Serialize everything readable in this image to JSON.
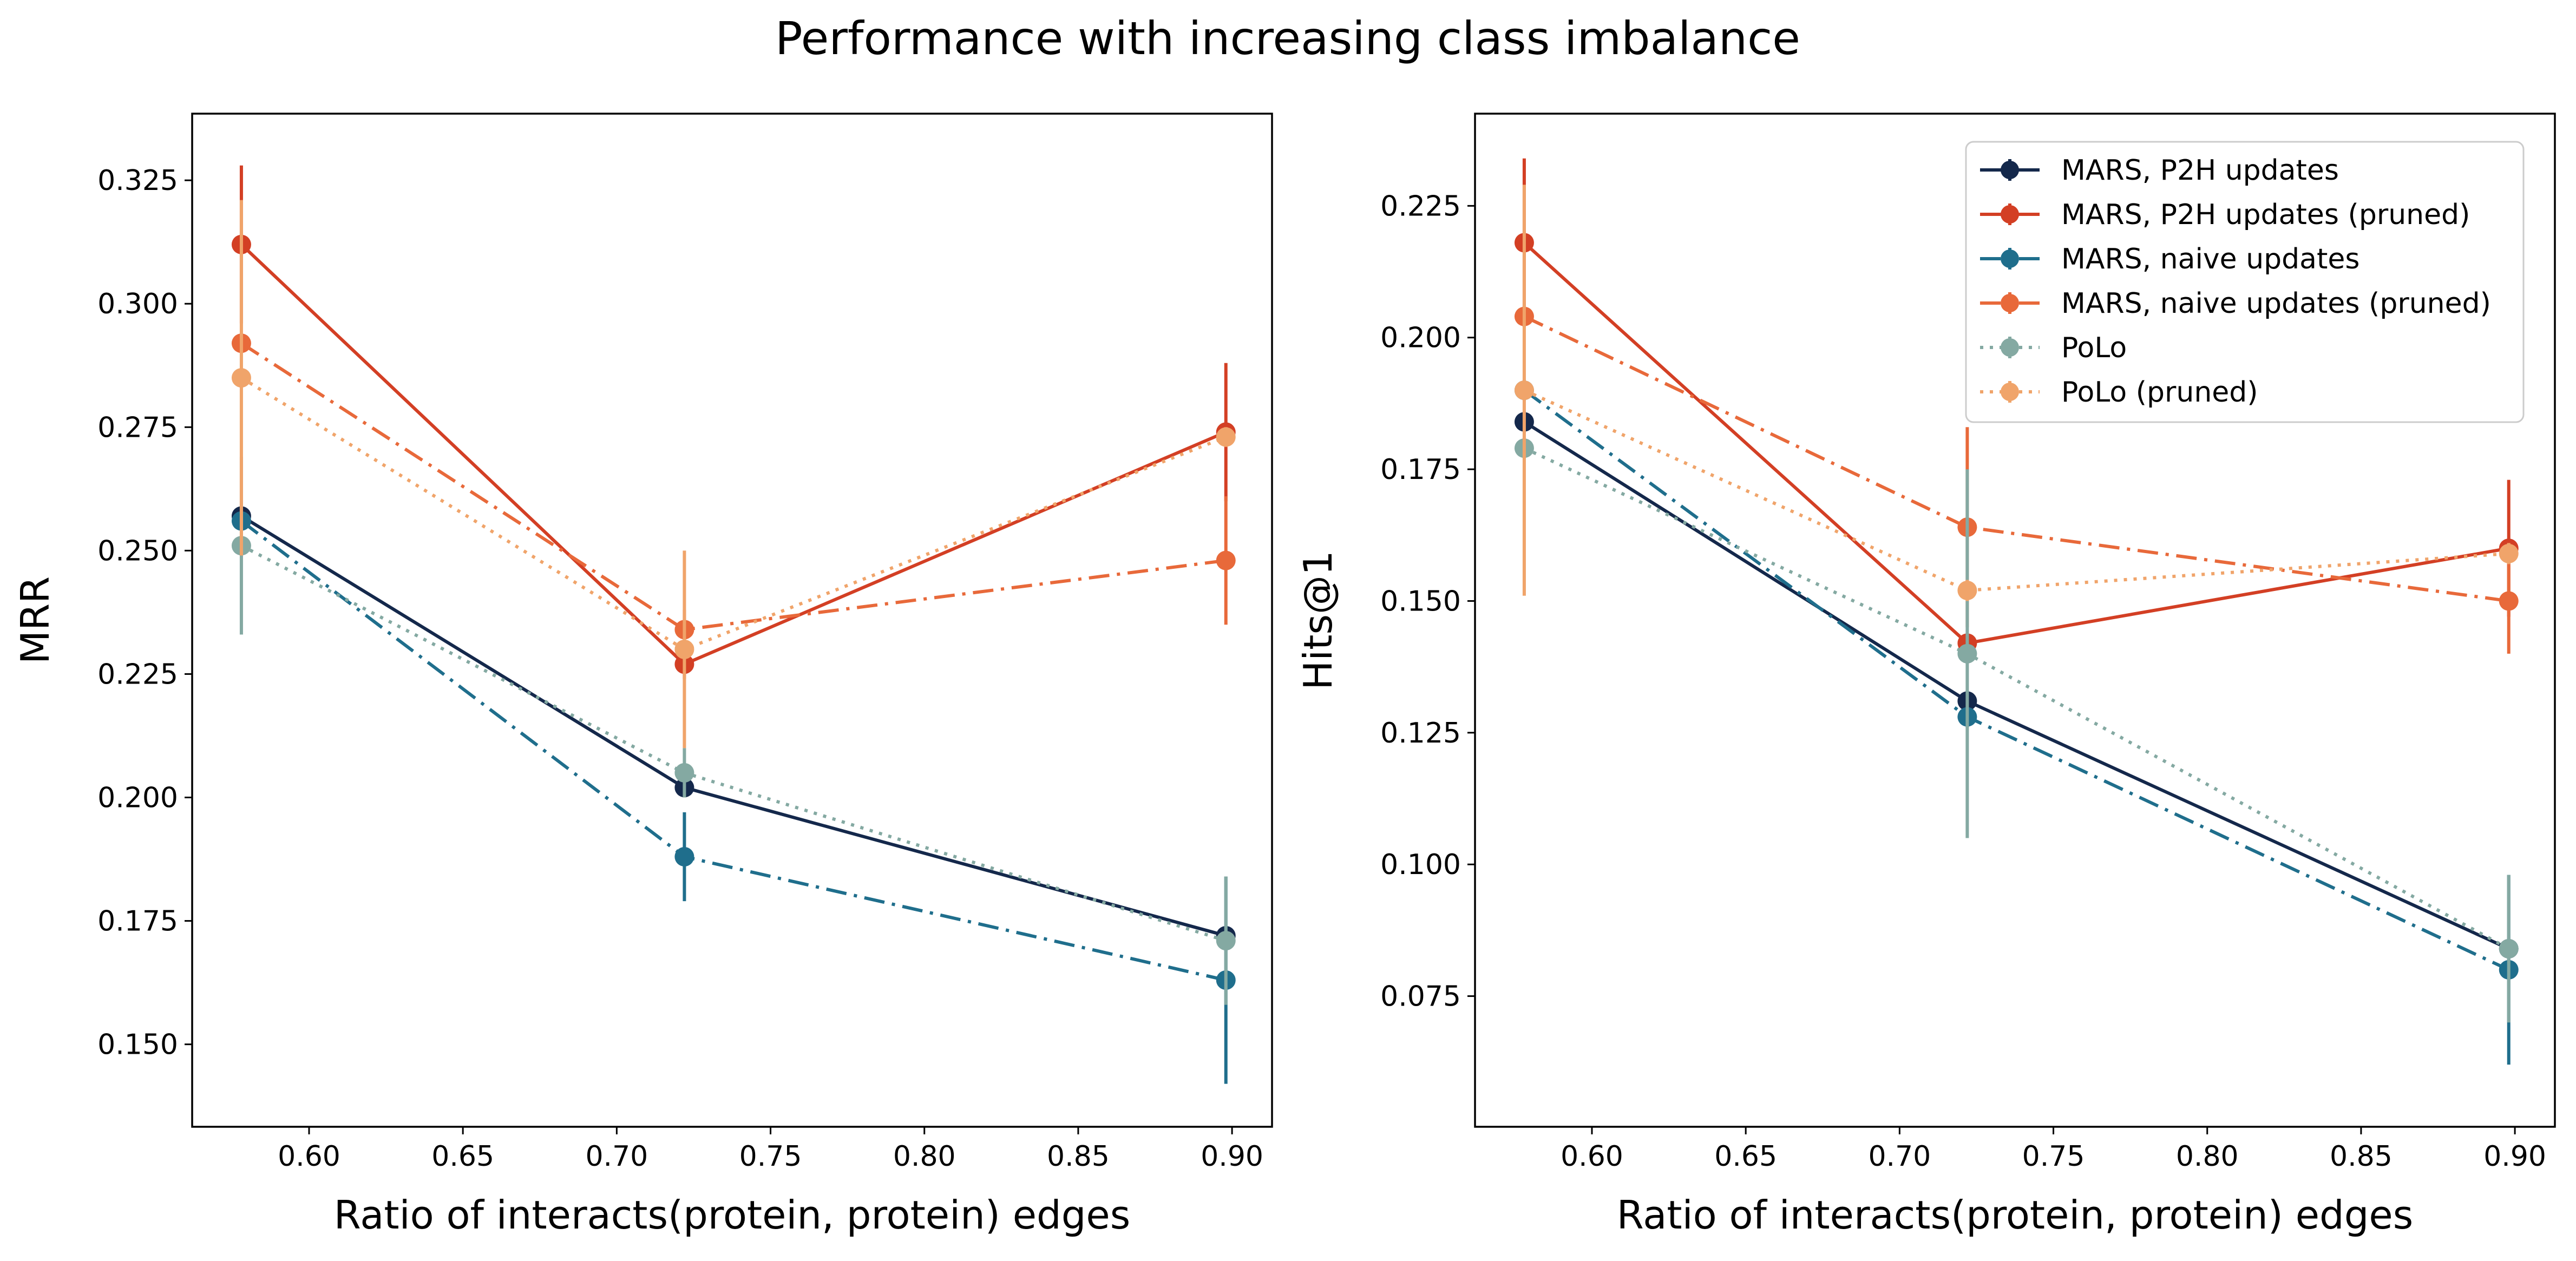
{
  "suptitle": "Performance with increasing class imbalance",
  "chart_data": [
    {
      "type": "line",
      "xlabel": "Ratio of interacts(protein, protein) edges",
      "ylabel": "MRR",
      "xlim": [
        0.562,
        0.913
      ],
      "ylim": [
        0.1333,
        0.3385
      ],
      "xticks": [
        "0.60",
        "0.65",
        "0.70",
        "0.75",
        "0.80",
        "0.85",
        "0.90"
      ],
      "yticks": [
        "0.150",
        "0.175",
        "0.200",
        "0.225",
        "0.250",
        "0.275",
        "0.300",
        "0.325"
      ],
      "x": [
        0.578,
        0.722,
        0.898
      ],
      "legend": "none",
      "grid": false,
      "series": [
        {
          "name": "MARS, P2H updates",
          "color": "#14284b",
          "dash": "solid",
          "values": [
            0.257,
            0.202,
            0.172
          ],
          "err": [
            0.002,
            0.002,
            0.001
          ]
        },
        {
          "name": "MARS, P2H updates (pruned)",
          "color": "#d33f24",
          "dash": "solid",
          "values": [
            0.312,
            0.227,
            0.274
          ],
          "err": [
            0.016,
            0.003,
            0.014
          ]
        },
        {
          "name": "MARS, naive updates",
          "color": "#1f6e8c",
          "dash": "dashdot",
          "values": [
            0.256,
            0.188,
            0.163
          ],
          "err": [
            0.002,
            0.009,
            0.021
          ]
        },
        {
          "name": "MARS, naive updates (pruned)",
          "color": "#e8693a",
          "dash": "dashdot",
          "values": [
            0.292,
            0.234,
            0.248
          ],
          "err": [
            0.002,
            0.004,
            0.013
          ]
        },
        {
          "name": "PoLo",
          "color": "#84a9a2",
          "dash": "dotted",
          "values": [
            0.251,
            0.205,
            0.171
          ],
          "err": [
            0.018,
            0.005,
            0.013
          ]
        },
        {
          "name": "PoLo (pruned)",
          "color": "#f0a46a",
          "dash": "dotted",
          "values": [
            0.285,
            0.23,
            0.273
          ],
          "err": [
            0.036,
            0.02,
            0.002
          ]
        }
      ]
    },
    {
      "type": "line",
      "xlabel": "Ratio of interacts(protein, protein) edges",
      "ylabel": "Hits@1",
      "xlim": [
        0.562,
        0.913
      ],
      "ylim": [
        0.0502,
        0.2425
      ],
      "xticks": [
        "0.60",
        "0.65",
        "0.70",
        "0.75",
        "0.80",
        "0.85",
        "0.90"
      ],
      "yticks": [
        "0.075",
        "0.100",
        "0.125",
        "0.150",
        "0.175",
        "0.200",
        "0.225"
      ],
      "x": [
        0.578,
        0.722,
        0.898
      ],
      "legend": "top-right",
      "grid": false,
      "series": [
        {
          "name": "MARS, P2H updates",
          "color": "#14284b",
          "dash": "solid",
          "values": [
            0.184,
            0.131,
            0.084
          ],
          "err": [
            0.002,
            0.002,
            0.001
          ]
        },
        {
          "name": "MARS, P2H updates (pruned)",
          "color": "#d33f24",
          "dash": "solid",
          "values": [
            0.218,
            0.142,
            0.16
          ],
          "err": [
            0.016,
            0.001,
            0.013
          ]
        },
        {
          "name": "MARS, naive updates",
          "color": "#1f6e8c",
          "dash": "dashdot",
          "values": [
            0.19,
            0.128,
            0.08
          ],
          "err": [
            0.002,
            0.002,
            0.018
          ]
        },
        {
          "name": "MARS, naive updates (pruned)",
          "color": "#e8693a",
          "dash": "dashdot",
          "values": [
            0.204,
            0.164,
            0.15
          ],
          "err": [
            0.002,
            0.019,
            0.01
          ]
        },
        {
          "name": "PoLo",
          "color": "#84a9a2",
          "dash": "dotted",
          "values": [
            0.179,
            0.14,
            0.084
          ],
          "err": [
            0.002,
            0.035,
            0.014
          ]
        },
        {
          "name": "PoLo (pruned)",
          "color": "#f0a46a",
          "dash": "dotted",
          "values": [
            0.19,
            0.152,
            0.159
          ],
          "err": [
            0.039,
            0.002,
            0.002
          ]
        }
      ]
    }
  ]
}
